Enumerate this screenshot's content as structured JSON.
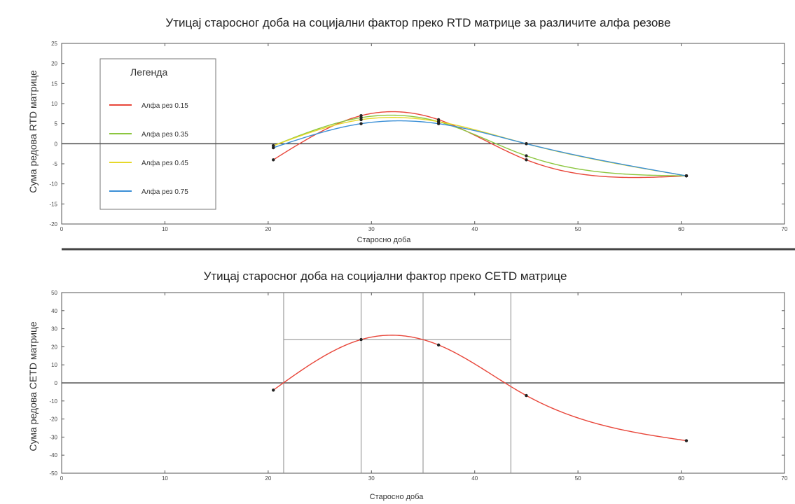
{
  "chart_data": [
    {
      "type": "line",
      "title": "Утицај старосног доба на социјални фактор преко RTD матрице за различите алфа резове",
      "xlabel": "Старосно доба",
      "ylabel": "Сума редова RTD матрице",
      "xlim": [
        0,
        70
      ],
      "ylim": [
        -20,
        25
      ],
      "xticks": [
        0,
        10,
        20,
        30,
        40,
        50,
        60,
        70
      ],
      "yticks": [
        -20,
        -15,
        -10,
        -5,
        0,
        5,
        10,
        15,
        20,
        25
      ],
      "grid": false,
      "legend": {
        "title": "Легенда",
        "position": "top-left"
      },
      "series": [
        {
          "name": "Алфа рез 0.15",
          "color": "#e8463a",
          "points": [
            [
              20.5,
              -4
            ],
            [
              29,
              7
            ],
            [
              36.5,
              6
            ],
            [
              45,
              -4
            ],
            [
              60.5,
              -8
            ]
          ]
        },
        {
          "name": "Алфа рез 0.35",
          "color": "#8cc63f",
          "points": [
            [
              20.5,
              -0.5
            ],
            [
              29,
              6.5
            ],
            [
              36.5,
              5.5
            ],
            [
              45,
              -3
            ],
            [
              60.5,
              -8
            ]
          ]
        },
        {
          "name": "Алфа рез 0.45",
          "color": "#e6d82a",
          "points": [
            [
              20.5,
              -0.5
            ],
            [
              29,
              6
            ],
            [
              36.5,
              5.5
            ],
            [
              45,
              0
            ],
            [
              60.5,
              -8
            ]
          ]
        },
        {
          "name": "Алфа рез 0.75",
          "color": "#3b8fd6",
          "points": [
            [
              20.5,
              -1
            ],
            [
              29,
              5
            ],
            [
              36.5,
              5
            ],
            [
              45,
              0
            ],
            [
              60.5,
              -8
            ]
          ]
        }
      ]
    },
    {
      "type": "line",
      "title": "Утицај старосног доба на социјални фактор  преко CETD матрице",
      "xlabel": "Старосно доба",
      "ylabel": "Сума редова CETD матрице",
      "xlim": [
        0,
        70
      ],
      "ylim": [
        -50,
        50
      ],
      "xticks": [
        0,
        10,
        20,
        30,
        40,
        50,
        60,
        70
      ],
      "yticks": [
        -50,
        -40,
        -30,
        -20,
        -10,
        0,
        10,
        20,
        30,
        40,
        50
      ],
      "grid": false,
      "series": [
        {
          "color": "#e8463a",
          "points": [
            [
              20.5,
              -4
            ],
            [
              29,
              24
            ],
            [
              36.5,
              21
            ],
            [
              45,
              -7
            ],
            [
              60.5,
              -32
            ]
          ]
        }
      ],
      "vertical_lines": [
        21.5,
        29,
        35,
        43.5
      ],
      "horizontal_segment": {
        "x": [
          21.5,
          43.5
        ],
        "y": 24
      }
    }
  ]
}
